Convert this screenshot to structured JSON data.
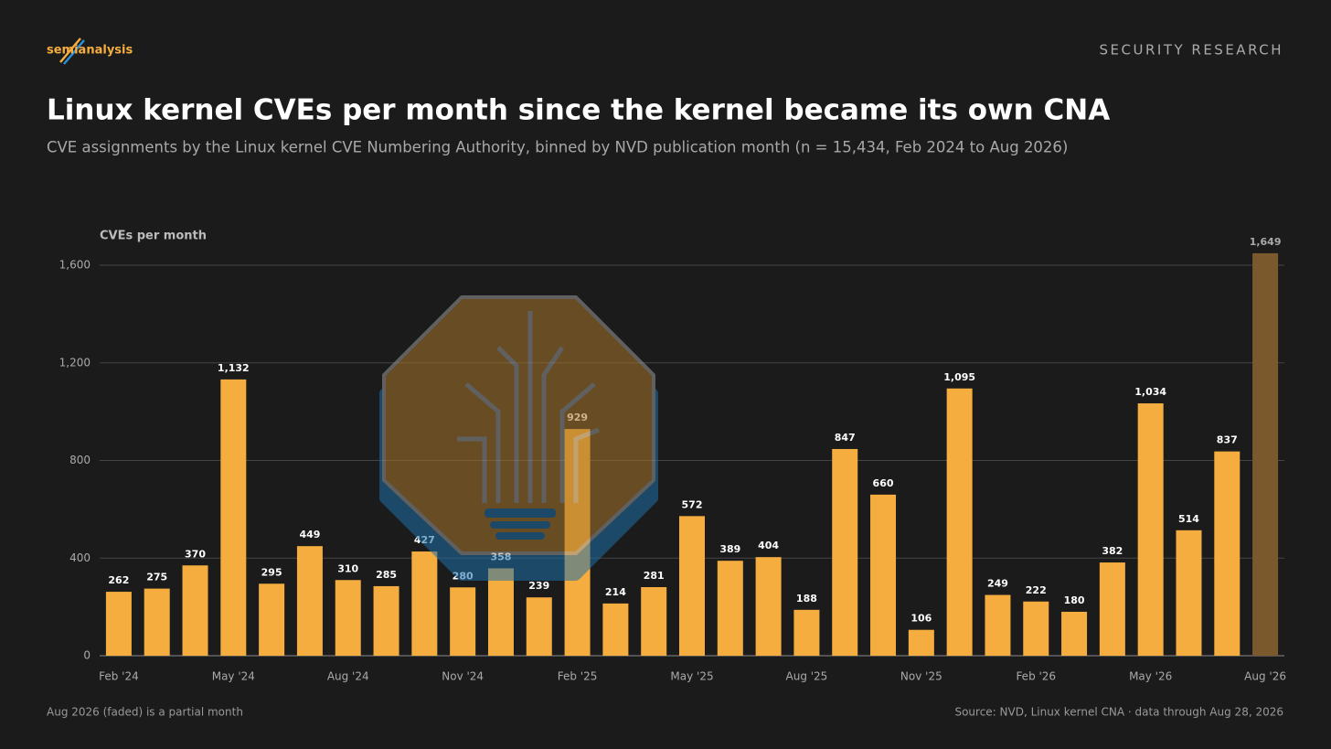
{
  "brand": "semianalysis",
  "section": "SECURITY RESEARCH",
  "chart_data": {
    "type": "bar",
    "title": "Linux kernel CVEs per month since the kernel became its own CNA",
    "subtitle": "CVE assignments by the Linux kernel CVE Numbering Authority, binned by NVD publication month (n = 15,434, Feb 2024 to Aug 2026)",
    "y_label": "CVEs per month",
    "categories": [
      "Feb '24",
      null,
      null,
      "May '24",
      null,
      null,
      "Aug '24",
      null,
      null,
      "Nov '24",
      null,
      null,
      "Feb '25",
      null,
      null,
      "May '25",
      null,
      null,
      "Aug '25",
      null,
      null,
      "Nov '25",
      null,
      null,
      "Feb '26",
      null,
      null,
      "May '26",
      null,
      null,
      "Aug '26"
    ],
    "values": [
      262,
      275,
      370,
      1132,
      295,
      449,
      310,
      285,
      427,
      280,
      358,
      239,
      929,
      214,
      281,
      572,
      389,
      404,
      188,
      847,
      660,
      106,
      1095,
      249,
      222,
      180,
      382,
      1034,
      514,
      837,
      1649
    ],
    "value_labels": [
      "262",
      "275",
      "370",
      "1,132",
      "295",
      "449",
      "310",
      "285",
      "427",
      "280",
      "358",
      "239",
      "929",
      "214",
      "281",
      "572",
      "389",
      "404",
      "188",
      "847",
      "660",
      "106",
      "1,095",
      "249",
      "222",
      "180",
      "382",
      "1,034",
      "514",
      "837",
      "1,649"
    ],
    "colors": [
      "#f5ad3f",
      "#f5ad3f",
      "#f5ad3f",
      "#f5ad3f",
      "#f5ad3f",
      "#f5ad3f",
      "#f5ad3f",
      "#f5ad3f",
      "#f5ad3f",
      "#f5ad3f",
      "#f5ad3f",
      "#f5ad3f",
      "#f5ad3f",
      "#f5ad3f",
      "#f5ad3f",
      "#f5ad3f",
      "#f5ad3f",
      "#f5ad3f",
      "#f5ad3f",
      "#f5ad3f",
      "#f5ad3f",
      "#f5ad3f",
      "#f5ad3f",
      "#f5ad3f",
      "#f5ad3f",
      "#f5ad3f",
      "#f5ad3f",
      "#f5ad3f",
      "#f5ad3f",
      "#f5ad3f",
      "#7a5a2c"
    ],
    "ylim": [
      0,
      1600
    ],
    "yticks": [
      0,
      400,
      800,
      {
        "value": 1200,
        "label": "1,200"
      },
      {
        "value": 1600,
        "label": "1,600"
      }
    ],
    "grid": true,
    "footnote": "Aug 2026 (faded) is a partial month",
    "source": "Source: NVD, Linux kernel CNA · data through Aug 28, 2026"
  }
}
